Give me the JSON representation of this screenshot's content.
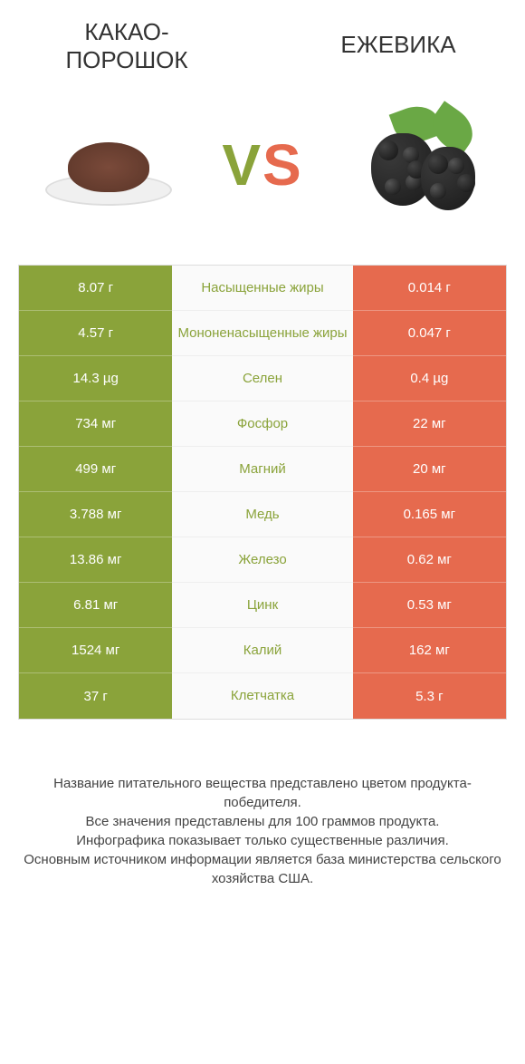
{
  "left_title": "КАКАО-ПОРОШОК",
  "right_title": "ЕЖЕВИКА",
  "vs": {
    "v": "V",
    "s": "S"
  },
  "colors": {
    "green": "#8aa33a",
    "orange": "#e66a4e",
    "mid_bg": "#fafafa",
    "text": "#333"
  },
  "rows": [
    {
      "left": "8.07 г",
      "label": "Насыщенные жиры",
      "right": "0.014 г",
      "winner": "left"
    },
    {
      "left": "4.57 г",
      "label": "Мононенасыщенные жиры",
      "right": "0.047 г",
      "winner": "left"
    },
    {
      "left": "14.3 µg",
      "label": "Селен",
      "right": "0.4 µg",
      "winner": "left"
    },
    {
      "left": "734 мг",
      "label": "Фосфор",
      "right": "22 мг",
      "winner": "left"
    },
    {
      "left": "499 мг",
      "label": "Магний",
      "right": "20 мг",
      "winner": "left"
    },
    {
      "left": "3.788 мг",
      "label": "Медь",
      "right": "0.165 мг",
      "winner": "left"
    },
    {
      "left": "13.86 мг",
      "label": "Железо",
      "right": "0.62 мг",
      "winner": "left"
    },
    {
      "left": "6.81 мг",
      "label": "Цинк",
      "right": "0.53 мг",
      "winner": "left"
    },
    {
      "left": "1524 мг",
      "label": "Калий",
      "right": "162 мг",
      "winner": "left"
    },
    {
      "left": "37 г",
      "label": "Клетчатка",
      "right": "5.3 г",
      "winner": "left"
    }
  ],
  "footer_lines": [
    "Название питательного вещества представлено цветом продукта-победителя.",
    "Все значения представлены для 100 граммов продукта.",
    "Инфографика показывает только существенные различия.",
    "Основным источником информации является база министерства сельского хозяйства США."
  ]
}
